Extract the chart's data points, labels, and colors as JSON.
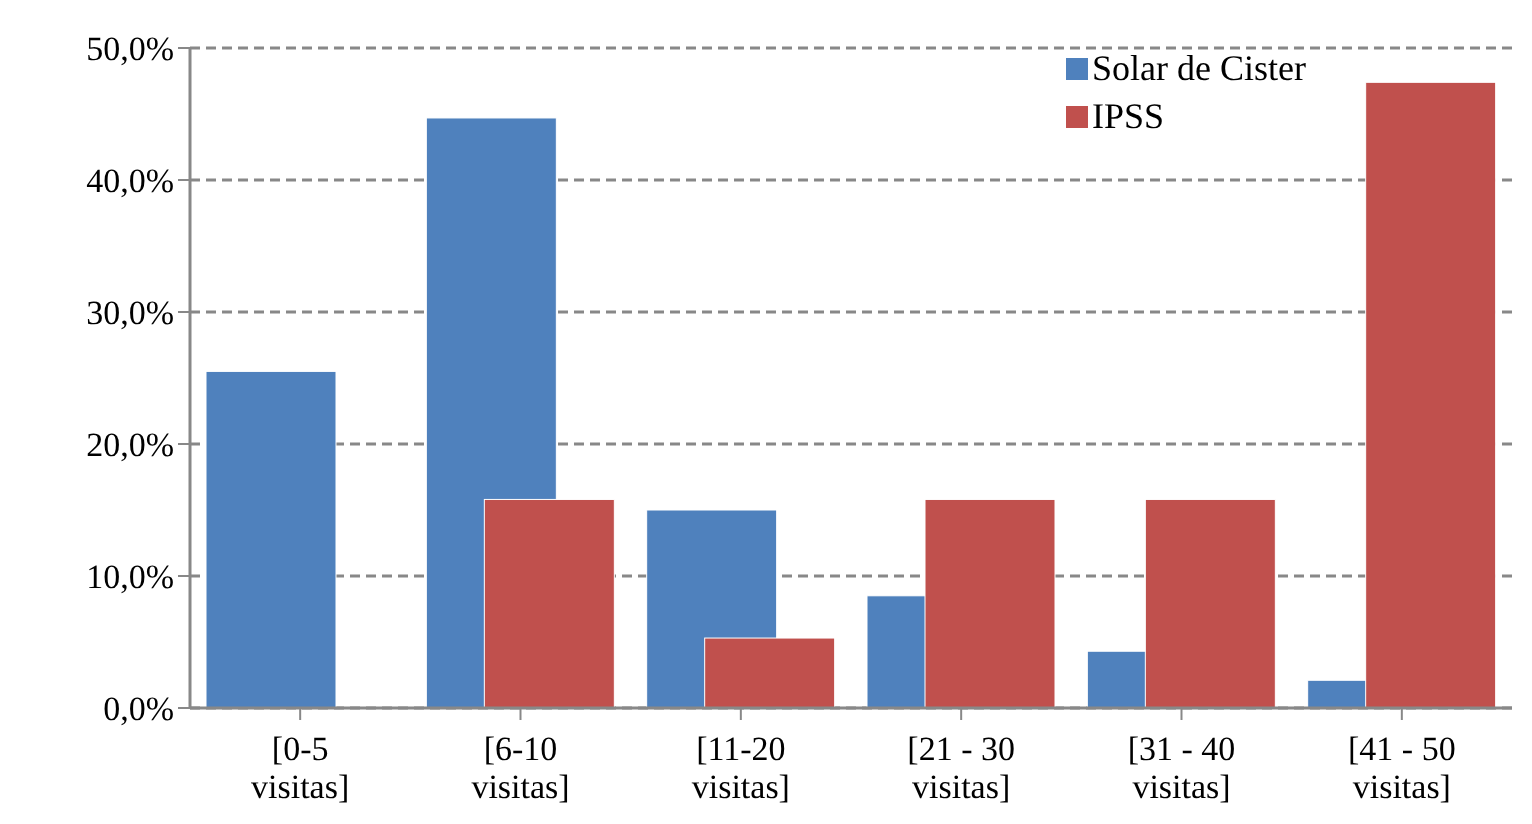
{
  "chart_data": {
    "type": "bar",
    "categories": [
      "[0-5 visitas]",
      "[6-10 visitas]",
      "[11-20 visitas]",
      "[21 - 30 visitas]",
      "[31 - 40 visitas]",
      "[41 - 50 visitas]"
    ],
    "series": [
      {
        "name": "Solar de Cister",
        "color": "#4f81bd",
        "values": [
          25.5,
          44.7,
          15.0,
          8.5,
          4.3,
          2.1
        ]
      },
      {
        "name": "IPSS",
        "color": "#c0504d",
        "values": [
          0,
          15.8,
          5.3,
          15.8,
          15.8,
          47.4
        ]
      }
    ],
    "ylim": [
      0,
      50
    ],
    "yticks": [
      {
        "value": 0,
        "label": "0,0%"
      },
      {
        "value": 10,
        "label": "10,0%"
      },
      {
        "value": 20,
        "label": "20,0%"
      },
      {
        "value": 30,
        "label": "30,0%"
      },
      {
        "value": 40,
        "label": "40,0%"
      },
      {
        "value": 50,
        "label": "50,0%"
      }
    ],
    "grid": "y",
    "legend": "top right"
  }
}
